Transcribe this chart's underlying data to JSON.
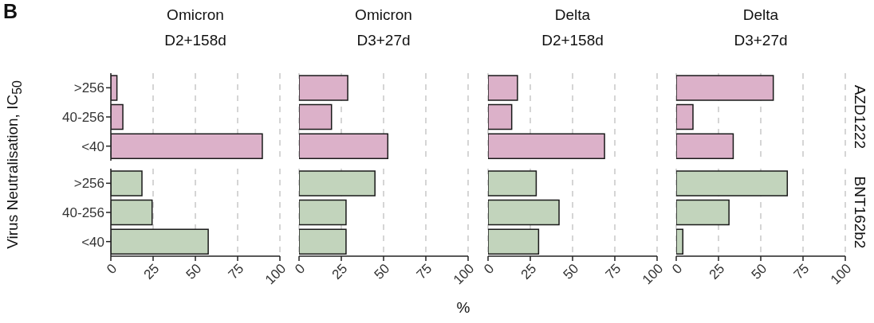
{
  "chart_data": [
    {
      "type": "bar",
      "orientation": "horizontal",
      "title": "Omicron",
      "subtitle": "D2+158d",
      "ylabel": "Virus Neutralisation, IC$_{50}$",
      "annotations": [
        "B"
      ],
      "categories": [
        ">256",
        "40-256",
        "<40"
      ],
      "values": [
        3.6,
        7.1,
        89.6
      ],
      "color": "#dcb1c9",
      "xlim": [
        0,
        100
      ],
      "xticks": [
        0,
        25,
        50,
        75,
        100
      ],
      "grid": "x",
      "tick_labels": "y"
    },
    {
      "type": "bar",
      "orientation": "horizontal",
      "title": "Omicron",
      "subtitle": "D3+27d",
      "categories": [
        null,
        null,
        null
      ],
      "values": [
        28.8,
        19.2,
        52.5
      ],
      "color": "#dcb1c9",
      "xlim": [
        0,
        100
      ],
      "xticks": [
        0,
        25,
        50,
        75,
        100
      ],
      "grid": "x",
      "tick_labels": false
    },
    {
      "type": "bar",
      "orientation": "horizontal",
      "title": "Delta",
      "subtitle": "D2+158d",
      "categories": [
        null,
        null,
        null
      ],
      "values": [
        17.4,
        14.0,
        68.9
      ],
      "color": "#dcb1c9",
      "xlim": [
        0,
        100
      ],
      "xticks": [
        0,
        25,
        50,
        75,
        100
      ],
      "grid": "x",
      "tick_labels": false
    },
    {
      "type": "bar",
      "orientation": "horizontal",
      "title": "Delta",
      "subtitle": "D3+27d",
      "y2label": "AZD1222",
      "categories": [
        null,
        null,
        null
      ],
      "values": [
        57.4,
        9.9,
        33.7
      ],
      "color": "#dcb1c9",
      "xlim": [
        0,
        100
      ],
      "xticks": [
        0,
        25,
        50,
        75,
        100
      ],
      "grid": "x",
      "tick_labels": false
    },
    {
      "type": "bar",
      "orientation": "horizontal",
      "categories": [
        ">256",
        "40-256",
        "<40"
      ],
      "values": [
        18.4,
        24.4,
        57.6
      ],
      "color": "#c2d4bc",
      "xlim": [
        0,
        100
      ],
      "xticks": [
        0,
        25,
        50,
        75,
        100
      ],
      "grid": "x"
    },
    {
      "type": "bar",
      "orientation": "horizontal",
      "xlabel": "%",
      "categories": [
        null,
        null,
        null
      ],
      "values": [
        44.9,
        27.8,
        27.8
      ],
      "color": "#c2d4bc",
      "xlim": [
        0,
        100
      ],
      "xticks": [
        0,
        25,
        50,
        75,
        100
      ],
      "grid": "x",
      "tick_labels": "x"
    },
    {
      "type": "bar",
      "orientation": "horizontal",
      "categories": [
        null,
        null,
        null
      ],
      "values": [
        28.5,
        42.0,
        29.9
      ],
      "color": "#c2d4bc",
      "xlim": [
        0,
        100
      ],
      "xticks": [
        0,
        25,
        50,
        75,
        100
      ],
      "grid": "x",
      "tick_labels": "x"
    },
    {
      "type": "bar",
      "orientation": "horizontal",
      "y2label": "BNT162b2",
      "categories": [
        null,
        null,
        null
      ],
      "values": [
        65.7,
        31.2,
        3.9
      ],
      "color": "#c2d4bc",
      "xlim": [
        0,
        100
      ],
      "xticks": [
        0,
        25,
        50,
        75,
        100
      ],
      "grid": "x",
      "tick_labels": "x"
    }
  ]
}
